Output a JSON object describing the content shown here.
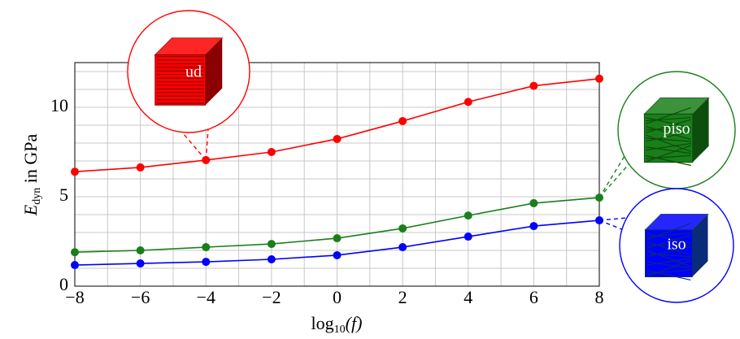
{
  "chart_data": {
    "type": "line",
    "xlabel": {
      "text": "log",
      "subscript": "10",
      "argument": "(f)"
    },
    "ylabel": {
      "symbol": "E",
      "subscript": "dyn",
      "text": "in GPa"
    },
    "x": [
      -8,
      -6,
      -4,
      -2,
      0,
      2,
      4,
      6,
      8
    ],
    "series": [
      {
        "name": "ud",
        "color": "#ff0000",
        "values": [
          6.4,
          6.64,
          7.05,
          7.5,
          8.23,
          9.23,
          10.3,
          11.2,
          11.6
        ]
      },
      {
        "name": "piso",
        "color": "#1a7f1a",
        "values": [
          1.9,
          2.0,
          2.18,
          2.36,
          2.68,
          3.23,
          3.95,
          4.64,
          4.95
        ]
      },
      {
        "name": "iso",
        "color": "#0000ff",
        "values": [
          1.18,
          1.27,
          1.36,
          1.5,
          1.73,
          2.18,
          2.77,
          3.36,
          3.68
        ]
      }
    ],
    "xlim": [
      -8,
      8
    ],
    "ylim": [
      0,
      12.5
    ],
    "xticks": [
      {
        "value": -8,
        "label": "−8"
      },
      {
        "value": -6,
        "label": "−6"
      },
      {
        "value": -4,
        "label": "−4"
      },
      {
        "value": -2,
        "label": "−2"
      },
      0,
      2,
      4,
      6,
      8
    ],
    "yticks": [
      0,
      5,
      10
    ],
    "minor_xticks": [
      -7,
      -5,
      -3,
      -1,
      1,
      3,
      5,
      7
    ],
    "minor_yticks": [
      1,
      2,
      3,
      4,
      6,
      7,
      8,
      9,
      11,
      12
    ],
    "grid": true
  }
}
